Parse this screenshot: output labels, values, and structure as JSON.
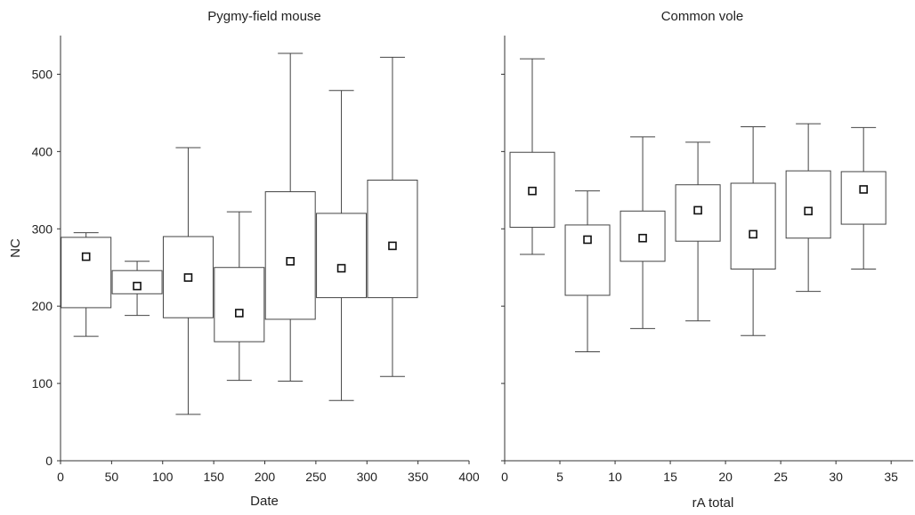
{
  "chart_data": [
    {
      "type": "box",
      "title": "Pygmy-field mouse",
      "xlabel": "Date",
      "ylabel": "NC",
      "xlim": [
        0,
        400
      ],
      "ylim": [
        0,
        550
      ],
      "xticks": [
        0,
        50,
        100,
        150,
        200,
        250,
        300,
        350,
        400
      ],
      "yticks": [
        0,
        100,
        200,
        300,
        400,
        500
      ],
      "boxes": [
        {
          "x": 25,
          "min": 161,
          "q1": 198,
          "mean": 264,
          "q3": 289,
          "max": 295
        },
        {
          "x": 75,
          "min": 188,
          "q1": 216,
          "mean": 226,
          "q3": 246,
          "max": 258
        },
        {
          "x": 125,
          "min": 60,
          "q1": 185,
          "mean": 237,
          "q3": 290,
          "max": 405
        },
        {
          "x": 175,
          "min": 104,
          "q1": 154,
          "mean": 191,
          "q3": 250,
          "max": 322
        },
        {
          "x": 225,
          "min": 103,
          "q1": 183,
          "mean": 258,
          "q3": 348,
          "max": 527
        },
        {
          "x": 275,
          "min": 78,
          "q1": 211,
          "mean": 249,
          "q3": 320,
          "max": 479
        },
        {
          "x": 325,
          "min": 109,
          "q1": 211,
          "mean": 278,
          "q3": 363,
          "max": 522
        }
      ]
    },
    {
      "type": "box",
      "title": "Common vole",
      "xlabel": "rA total",
      "ylabel": "",
      "xlim": [
        0,
        37
      ],
      "ylim": [
        0,
        550
      ],
      "xticks": [
        0,
        5,
        10,
        15,
        20,
        25,
        30,
        35
      ],
      "yticks": [
        0,
        100,
        200,
        300,
        400,
        500
      ],
      "boxes": [
        {
          "x": 2.5,
          "min": 267,
          "q1": 302,
          "mean": 349,
          "q3": 399,
          "max": 520
        },
        {
          "x": 7.5,
          "min": 141,
          "q1": 214,
          "mean": 286,
          "q3": 305,
          "max": 349
        },
        {
          "x": 12.5,
          "min": 171,
          "q1": 258,
          "mean": 288,
          "q3": 323,
          "max": 419
        },
        {
          "x": 17.5,
          "min": 181,
          "q1": 284,
          "mean": 324,
          "q3": 357,
          "max": 412
        },
        {
          "x": 22.5,
          "min": 162,
          "q1": 248,
          "mean": 293,
          "q3": 359,
          "max": 432
        },
        {
          "x": 27.5,
          "min": 219,
          "q1": 288,
          "mean": 323,
          "q3": 375,
          "max": 436
        },
        {
          "x": 32.5,
          "min": 248,
          "q1": 306,
          "mean": 351,
          "q3": 374,
          "max": 431
        }
      ]
    }
  ]
}
